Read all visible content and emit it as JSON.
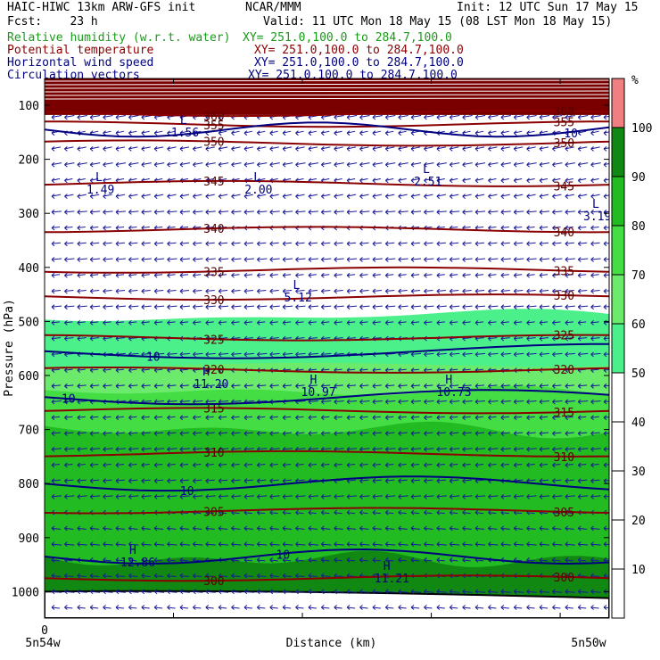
{
  "header": {
    "line1_left": "HAIC-HIWC 13km ARW-GFS init",
    "line1_mid": "NCAR/MMM",
    "line1_right": "Init: 12 UTC Sun 17 May 15",
    "line2_left": "Fcst:    23 h",
    "line2_right": "Valid: 11 UTC Mon 18 May 15 (08 LST Mon 18 May 15)",
    "fields": [
      {
        "name": "Relative humidity (w.r.t. water)",
        "xy": "XY= 251.0,100.0 to 284.7,100.0",
        "color": "#1a9a1a"
      },
      {
        "name": "Potential temperature",
        "xy": "XY= 251.0,100.0 to 284.7,100.0",
        "color": "#8b0000"
      },
      {
        "name": "Horizontal wind speed",
        "xy": "XY= 251.0,100.0 to 284.7,100.0",
        "color": "#000080"
      },
      {
        "name": "Circulation vectors",
        "xy": "XY= 251.0,100.0 to 284.7,100.0",
        "color": "#000080"
      }
    ]
  },
  "chart_data": {
    "type": "heatmap",
    "ylabel": "Pressure (hPa)",
    "xlabel": "Distance (km)",
    "x_start_label": "5n54w",
    "x_end_label": "5n50w",
    "x_zero_tick": "0",
    "yticks": [
      100,
      200,
      300,
      400,
      500,
      600,
      700,
      800,
      900,
      1000
    ],
    "ylim": [
      1050,
      50
    ],
    "colorbar": {
      "unit": "%",
      "ticks": [
        10,
        20,
        30,
        40,
        50,
        60,
        70,
        80,
        90,
        100
      ],
      "shaded_levels": [
        {
          "from": 50,
          "to": 60,
          "color": "#4cf08a"
        },
        {
          "from": 60,
          "to": 70,
          "color": "#6bea6b"
        },
        {
          "from": 70,
          "to": 80,
          "color": "#44dd44"
        },
        {
          "from": 80,
          "to": 90,
          "color": "#22bb22"
        },
        {
          "from": 90,
          "to": 100,
          "color": "#118811"
        },
        {
          "from": 100,
          "to": 110,
          "color": "#f08080"
        }
      ]
    },
    "rh_regions": [
      {
        "level": 50,
        "top_hpa": 490,
        "color": "#4cf08a"
      },
      {
        "level": 60,
        "top_hpa": 580,
        "color": "#6bea6b"
      },
      {
        "level": 70,
        "top_hpa": 630,
        "color": "#44dd44"
      },
      {
        "level": 80,
        "top_hpa": 700,
        "color": "#22bb22"
      },
      {
        "level": 90,
        "top_hpa": 940,
        "color": "#118811"
      }
    ],
    "theta_contours": [
      {
        "value": "300",
        "p": 975
      },
      {
        "value": "305",
        "p": 850
      },
      {
        "value": "310",
        "p": 745
      },
      {
        "value": "315",
        "p": 665
      },
      {
        "value": "320",
        "p": 590
      },
      {
        "value": "325",
        "p": 530
      },
      {
        "value": "330",
        "p": 455
      },
      {
        "value": "335",
        "p": 405
      },
      {
        "value": "340",
        "p": 330
      },
      {
        "value": "345",
        "p": 245
      },
      {
        "value": "350",
        "p": 170
      },
      {
        "value": "355",
        "p": 135
      },
      {
        "value": "360",
        "p": 115
      }
    ],
    "wind_contours": [
      {
        "value": "10",
        "p": 555
      },
      {
        "value": "10",
        "p": 640
      },
      {
        "value": "10",
        "p": 800
      },
      {
        "value": "10",
        "p": 935
      },
      {
        "value": "10",
        "p": 145
      }
    ],
    "extrema": [
      {
        "kind": "L",
        "value": "1.49",
        "x": 0.09,
        "p": 240
      },
      {
        "kind": "L",
        "value": "2.00",
        "x": 0.37,
        "p": 240
      },
      {
        "kind": "L",
        "value": "2.51",
        "x": 0.67,
        "p": 225
      },
      {
        "kind": "L",
        "value": "3.19",
        "x": 0.97,
        "p": 290
      },
      {
        "kind": "L",
        "value": "5.12",
        "x": 0.44,
        "p": 440
      },
      {
        "kind": "L",
        "value": "1.56",
        "x": 0.24,
        "p": 135
      },
      {
        "kind": "H",
        "value": "11.20",
        "x": 0.28,
        "p": 600
      },
      {
        "kind": "H",
        "value": "10.97",
        "x": 0.47,
        "p": 615
      },
      {
        "kind": "H",
        "value": "10.73",
        "x": 0.71,
        "p": 615
      },
      {
        "kind": "H",
        "value": "12.86",
        "x": 0.15,
        "p": 930
      },
      {
        "kind": "H",
        "value": "11.21",
        "x": 0.6,
        "p": 960
      }
    ]
  }
}
